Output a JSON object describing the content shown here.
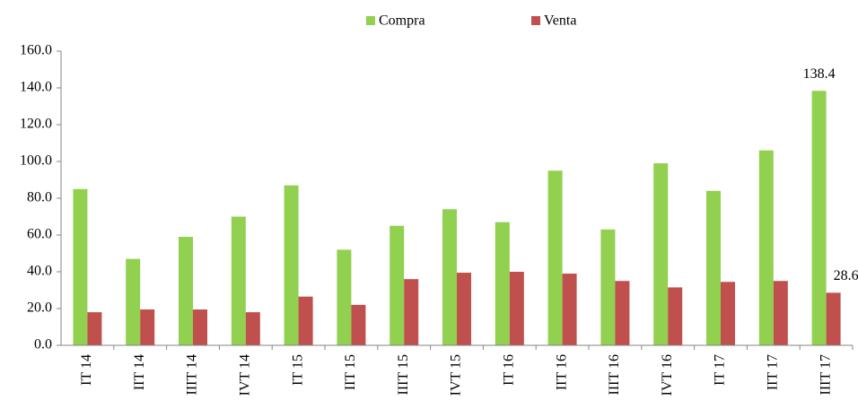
{
  "chart_data": {
    "type": "bar",
    "categories": [
      "IT 14",
      "IIT 14",
      "IIIT 14",
      "IVT 14",
      "IT 15",
      "IIT 15",
      "IIIT 15",
      "IVT 15",
      "IT 16",
      "IIT 16",
      "IIIT 16",
      "IVT 16",
      "IT 17",
      "IIT 17",
      "IIIT 17"
    ],
    "series": [
      {
        "name": "Compra",
        "color": "#92d050",
        "values": [
          85,
          47,
          59,
          70,
          87,
          52,
          65,
          74,
          67,
          95,
          63,
          99,
          84,
          106,
          138.4
        ],
        "value_labels": [
          null,
          null,
          null,
          null,
          null,
          null,
          null,
          null,
          null,
          null,
          null,
          null,
          null,
          null,
          "138.4"
        ]
      },
      {
        "name": "Venta",
        "color": "#c0504d",
        "values": [
          18,
          19.5,
          19.5,
          18,
          26.5,
          22,
          36,
          39.5,
          40,
          39,
          35,
          31.5,
          34.5,
          35,
          28.6
        ],
        "value_labels": [
          null,
          null,
          null,
          null,
          null,
          null,
          null,
          null,
          null,
          null,
          null,
          null,
          null,
          null,
          "28.6"
        ]
      }
    ],
    "ylim": [
      0,
      160
    ],
    "yticks": [
      {
        "value": 0,
        "label": "0.0"
      },
      {
        "value": 20,
        "label": "20.0"
      },
      {
        "value": 40,
        "label": "40.0"
      },
      {
        "value": 60,
        "label": "60.0"
      },
      {
        "value": 80,
        "label": "80.0"
      },
      {
        "value": 100,
        "label": "100.0"
      },
      {
        "value": 120,
        "label": "120.0"
      },
      {
        "value": 140,
        "label": "140.0"
      },
      {
        "value": 160,
        "label": "160.0"
      }
    ],
    "legend": "top",
    "grid": false
  }
}
